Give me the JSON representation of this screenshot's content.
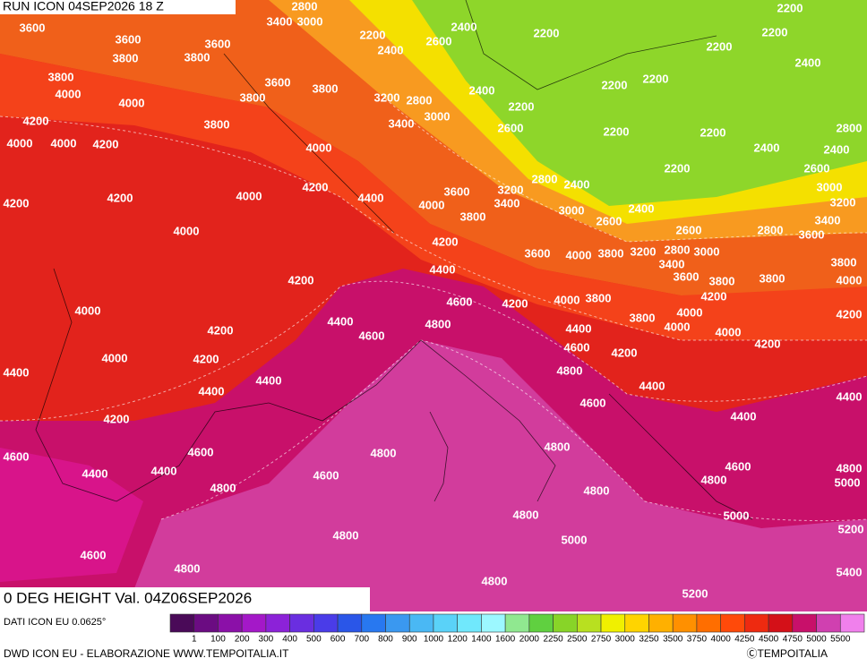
{
  "header": {
    "title": "RUN ICON 04SEP2026 18 Z"
  },
  "map": {
    "field_title": "0 DEG HEIGHT Val. 04Z06SEP2026",
    "contour_labels": [
      "3600",
      "3600",
      "3600",
      "3800",
      "3800",
      "3400",
      "2800",
      "3000",
      "2200",
      "2400",
      "2600",
      "2400",
      "2200",
      "2200",
      "2200",
      "2200",
      "2400",
      "3800",
      "4000",
      "3600",
      "3800",
      "3800",
      "3200",
      "2800",
      "2400",
      "2200",
      "2200",
      "2200",
      "4000",
      "3400",
      "3000",
      "2600",
      "2200",
      "2200",
      "2800",
      "4200",
      "3800",
      "4000",
      "4000",
      "4200",
      "4000",
      "2400",
      "2400",
      "2200",
      "2600",
      "4200",
      "4400",
      "4000",
      "4200",
      "4200",
      "3600",
      "3200",
      "2800",
      "2400",
      "3000",
      "3400",
      "4000",
      "3800",
      "3000",
      "3200",
      "2600",
      "2400",
      "3400",
      "4000",
      "4200",
      "2600",
      "2800",
      "3600",
      "3600",
      "4000",
      "3800",
      "3200",
      "2800",
      "3000",
      "3400",
      "3800",
      "4400",
      "3600",
      "3800",
      "3800",
      "4000",
      "4200",
      "4200",
      "4600",
      "4200",
      "4000",
      "3800",
      "4000",
      "4000",
      "4200",
      "4400",
      "3800",
      "4000",
      "4800",
      "4400",
      "4000",
      "4600",
      "4200",
      "4600",
      "4200",
      "4000",
      "4200",
      "4200",
      "4400",
      "4800",
      "4400",
      "4400",
      "4400",
      "4400",
      "4600",
      "4200",
      "4400",
      "4800",
      "4800",
      "4600",
      "4600",
      "4600",
      "4800",
      "4400",
      "4400",
      "4600",
      "4800",
      "4800",
      "4800",
      "5000",
      "4800",
      "5000",
      "5200",
      "4800",
      "5000",
      "4600",
      "4800",
      "5400",
      "4800",
      "5200"
    ]
  },
  "legend": {
    "source": "DATI ICON EU 0.0625°",
    "labels": [
      "1",
      "100",
      "200",
      "300",
      "400",
      "500",
      "600",
      "700",
      "800",
      "900",
      "1000",
      "1200",
      "1400",
      "1600",
      "2000",
      "2250",
      "2500",
      "2750",
      "3000",
      "3250",
      "3500",
      "3750",
      "4000",
      "4250",
      "4500",
      "4750",
      "5000",
      "5500"
    ],
    "colors": [
      "#4a0a58",
      "#6b0c82",
      "#8b10a8",
      "#a418c8",
      "#8c22d8",
      "#6a2ee0",
      "#4a3ce8",
      "#2a56e8",
      "#2878f0",
      "#3a98f0",
      "#4ab8f4",
      "#5ad2f8",
      "#70e8fc",
      "#9cf8ff",
      "#90e890",
      "#60d040",
      "#88d428",
      "#b8e020",
      "#f0f000",
      "#ffd400",
      "#ffb000",
      "#ff9000",
      "#ff6e00",
      "#ff4a0a",
      "#ee2a10",
      "#d41018",
      "#c8106a",
      "#d040b0",
      "#f080ec"
    ]
  },
  "footer": {
    "credit": "DWD ICON EU - ELABORAZIONE WWW.TEMPOITALIA.IT",
    "copyright": "ⒸTEMPOITALIA"
  }
}
